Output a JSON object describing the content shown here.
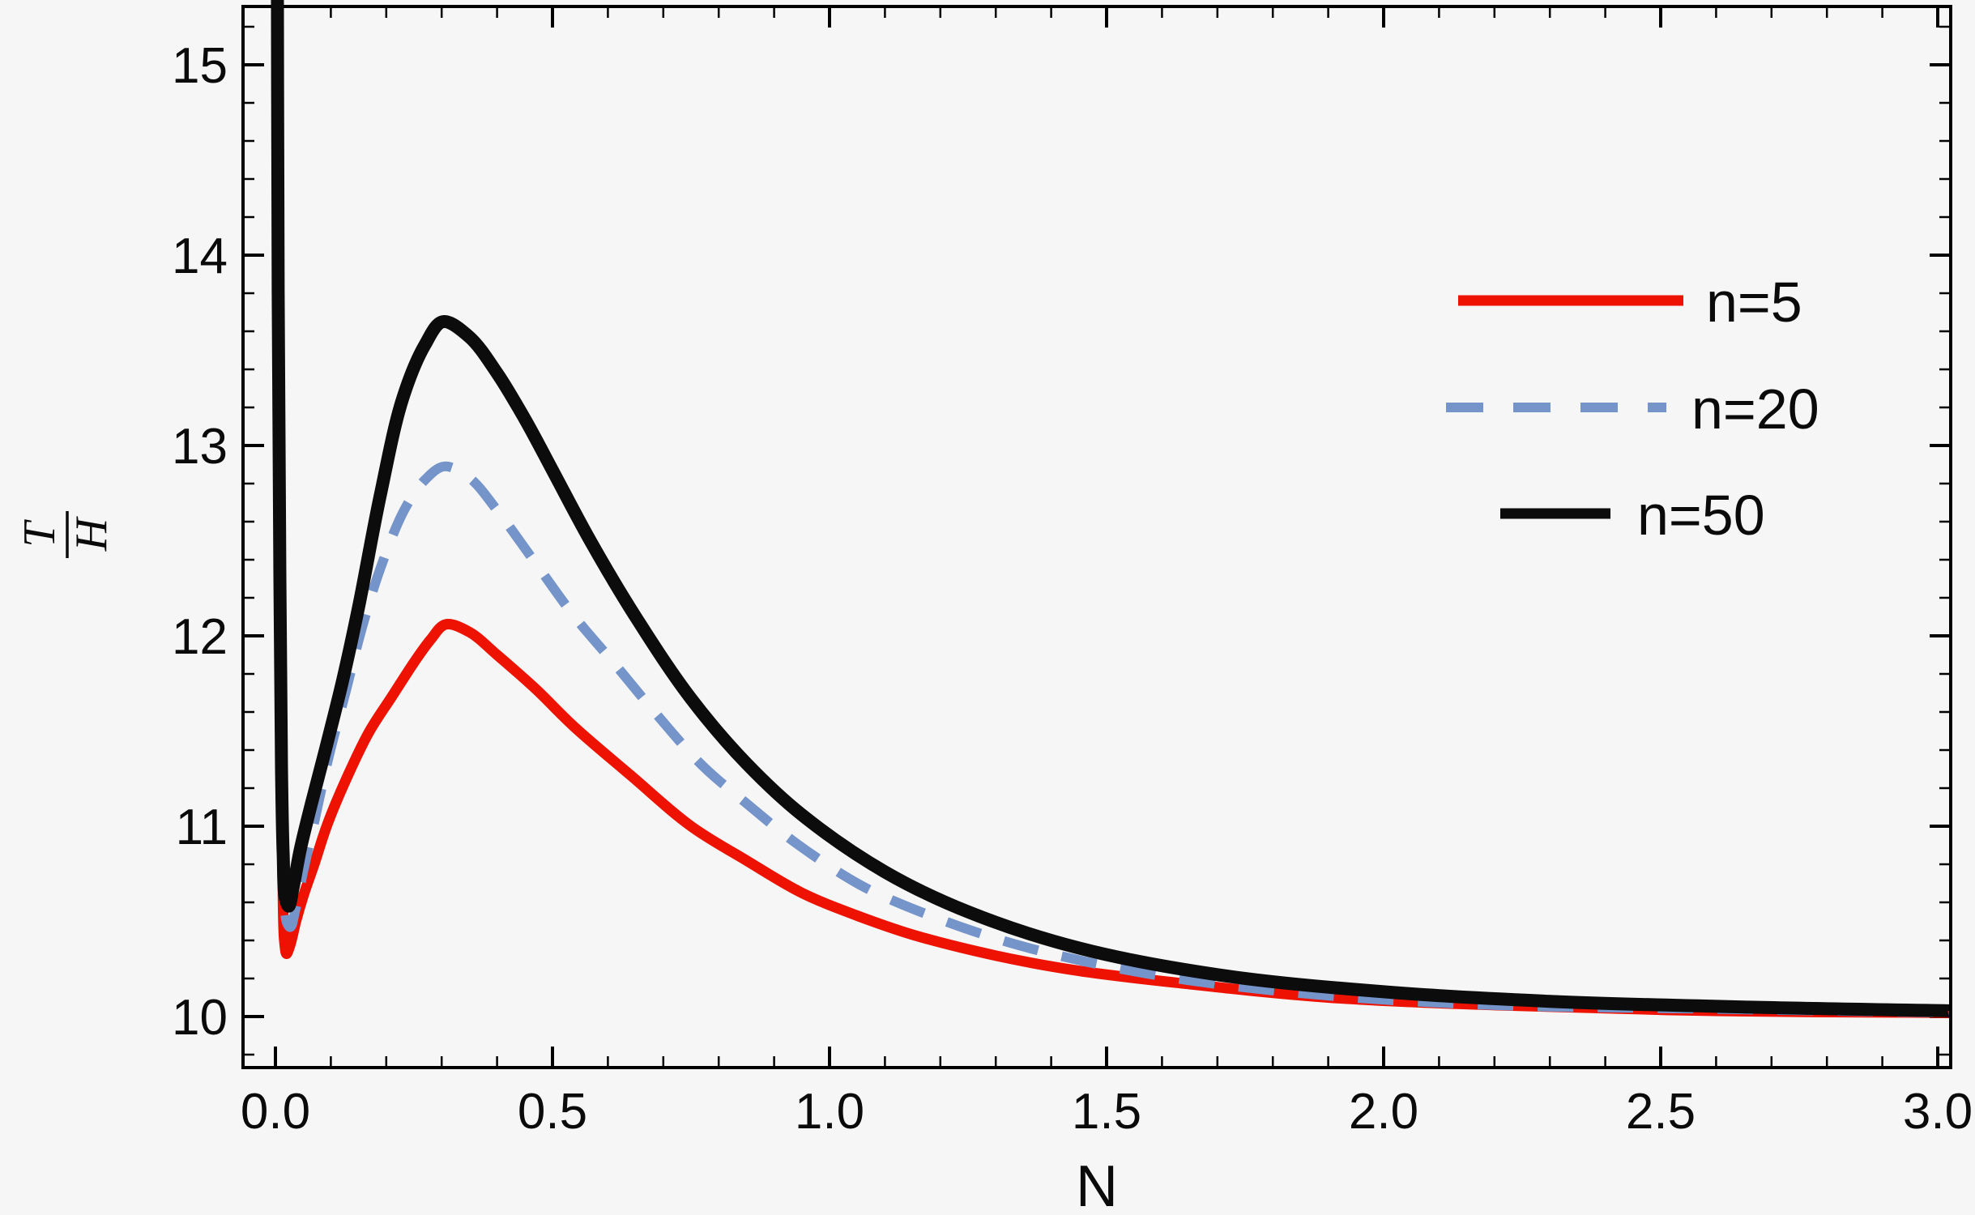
{
  "background": "#f6f6f6",
  "chart_data": {
    "type": "line",
    "title": "",
    "xlabel": "N",
    "ylabel_fraction": {
      "numerator": "T",
      "denominator": "H"
    },
    "xlim": [
      -0.06,
      3.02
    ],
    "ylim": [
      9.73,
      15.31
    ],
    "x_ticks": [
      0.0,
      0.5,
      1.0,
      1.5,
      2.0,
      2.5,
      3.0
    ],
    "x_tick_labels": [
      "0.0",
      "0.5",
      "1.0",
      "1.5",
      "2.0",
      "2.5",
      "3.0"
    ],
    "y_ticks": [
      10,
      11,
      12,
      13,
      14,
      15
    ],
    "y_tick_labels": [
      "10",
      "11",
      "12",
      "13",
      "14",
      "15"
    ],
    "x_minor_tick_step": 0.1,
    "y_minor_tick_step": 0.2,
    "grid": false,
    "frame": true,
    "legend_position": "upper right",
    "series": [
      {
        "name": "n=5",
        "color": "#ee1202",
        "dash": "solid",
        "line_width": 13,
        "points": [
          [
            0.004,
            16.2
          ],
          [
            0.006,
            14.0
          ],
          [
            0.008,
            12.6
          ],
          [
            0.01,
            11.6
          ],
          [
            0.013,
            10.75
          ],
          [
            0.016,
            10.4
          ],
          [
            0.02,
            10.33
          ],
          [
            0.027,
            10.38
          ],
          [
            0.037,
            10.5
          ],
          [
            0.05,
            10.63
          ],
          [
            0.07,
            10.8
          ],
          [
            0.095,
            11.02
          ],
          [
            0.136,
            11.3
          ],
          [
            0.17,
            11.5
          ],
          [
            0.21,
            11.68
          ],
          [
            0.25,
            11.86
          ],
          [
            0.28,
            11.98
          ],
          [
            0.307,
            12.06
          ],
          [
            0.35,
            12.02
          ],
          [
            0.4,
            11.9
          ],
          [
            0.47,
            11.72
          ],
          [
            0.54,
            11.52
          ],
          [
            0.64,
            11.27
          ],
          [
            0.75,
            11.0
          ],
          [
            0.85,
            10.82
          ],
          [
            0.95,
            10.65
          ],
          [
            1.05,
            10.53
          ],
          [
            1.15,
            10.43
          ],
          [
            1.3,
            10.32
          ],
          [
            1.45,
            10.24
          ],
          [
            1.65,
            10.17
          ],
          [
            1.9,
            10.1
          ],
          [
            2.2,
            10.06
          ],
          [
            2.6,
            10.03
          ],
          [
            3.03,
            10.02
          ]
        ]
      },
      {
        "name": "n=20",
        "color": "#7494ca",
        "dash": "dashed",
        "line_width": 12,
        "points": [
          [
            0.004,
            16.2
          ],
          [
            0.006,
            14.2
          ],
          [
            0.008,
            12.9
          ],
          [
            0.01,
            11.9
          ],
          [
            0.013,
            11.0
          ],
          [
            0.016,
            10.62
          ],
          [
            0.021,
            10.49
          ],
          [
            0.027,
            10.47
          ],
          [
            0.036,
            10.56
          ],
          [
            0.05,
            10.76
          ],
          [
            0.07,
            11.02
          ],
          [
            0.095,
            11.35
          ],
          [
            0.128,
            11.72
          ],
          [
            0.157,
            12.05
          ],
          [
            0.19,
            12.36
          ],
          [
            0.234,
            12.67
          ],
          [
            0.27,
            12.82
          ],
          [
            0.305,
            12.89
          ],
          [
            0.35,
            12.83
          ],
          [
            0.4,
            12.66
          ],
          [
            0.47,
            12.38
          ],
          [
            0.54,
            12.1
          ],
          [
            0.61,
            11.86
          ],
          [
            0.69,
            11.58
          ],
          [
            0.77,
            11.32
          ],
          [
            0.85,
            11.12
          ],
          [
            0.94,
            10.91
          ],
          [
            1.05,
            10.7
          ],
          [
            1.13,
            10.59
          ],
          [
            1.3,
            10.41
          ],
          [
            1.46,
            10.29
          ],
          [
            1.65,
            10.19
          ],
          [
            1.9,
            10.11
          ],
          [
            2.2,
            10.06
          ],
          [
            2.6,
            10.04
          ],
          [
            3.03,
            10.02
          ]
        ]
      },
      {
        "name": "n=50",
        "color": "#0c0c0c",
        "dash": "solid",
        "line_width": 16,
        "points": [
          [
            0.003,
            16.2
          ],
          [
            0.005,
            13.8
          ],
          [
            0.008,
            12.3
          ],
          [
            0.011,
            11.3
          ],
          [
            0.014,
            10.85
          ],
          [
            0.018,
            10.62
          ],
          [
            0.024,
            10.58
          ],
          [
            0.032,
            10.68
          ],
          [
            0.045,
            10.88
          ],
          [
            0.065,
            11.12
          ],
          [
            0.09,
            11.4
          ],
          [
            0.12,
            11.75
          ],
          [
            0.15,
            12.15
          ],
          [
            0.19,
            12.75
          ],
          [
            0.23,
            13.25
          ],
          [
            0.27,
            13.53
          ],
          [
            0.302,
            13.65
          ],
          [
            0.35,
            13.57
          ],
          [
            0.4,
            13.38
          ],
          [
            0.45,
            13.14
          ],
          [
            0.5,
            12.87
          ],
          [
            0.57,
            12.49
          ],
          [
            0.65,
            12.1
          ],
          [
            0.75,
            11.67
          ],
          [
            0.85,
            11.33
          ],
          [
            0.95,
            11.06
          ],
          [
            1.1,
            10.76
          ],
          [
            1.25,
            10.55
          ],
          [
            1.45,
            10.36
          ],
          [
            1.7,
            10.22
          ],
          [
            2.0,
            10.13
          ],
          [
            2.3,
            10.08
          ],
          [
            2.65,
            10.05
          ],
          [
            3.03,
            10.03
          ]
        ]
      }
    ]
  }
}
